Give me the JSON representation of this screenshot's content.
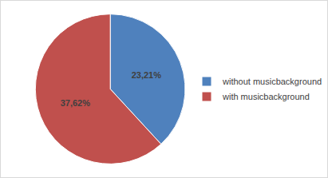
{
  "chart_data": {
    "type": "pie",
    "categories": [
      "without musicbackground",
      "with musicbackground"
    ],
    "values": [
      23.21,
      37.62
    ],
    "value_labels": [
      "23,21%",
      "37,62%"
    ],
    "colors": [
      "#4f81bd",
      "#c0504d"
    ],
    "data_labels": true,
    "legend": "right"
  }
}
